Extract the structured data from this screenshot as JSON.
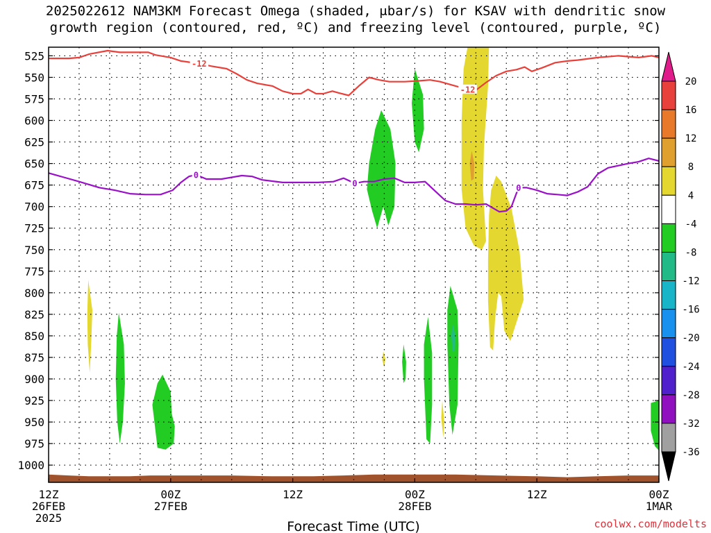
{
  "title": {
    "line1": "2025022612 NAM3KM Forecast Omega (shaded, μbar/s) for KSAV with dendritic snow",
    "line2": "growth region (contoured, red, ºC) and freezing level (contoured, purple, ºC)"
  },
  "credit": "coolwx.com/modelts",
  "chart_data": {
    "type": "time-height cross section",
    "xlabel": "Forecast Time (UTC)",
    "ylabel": "",
    "y_axis": {
      "units": "hPa",
      "inverted": true,
      "ylim": [
        1020,
        515
      ],
      "ticks": [
        525,
        550,
        575,
        600,
        625,
        650,
        675,
        700,
        725,
        750,
        775,
        800,
        825,
        850,
        875,
        900,
        925,
        950,
        975,
        1000
      ]
    },
    "x_axis": {
      "xlim_hours": [
        0,
        60
      ],
      "ticks": [
        {
          "hour": 0,
          "labels": [
            "12Z",
            "26FEB",
            "2025"
          ]
        },
        {
          "hour": 12,
          "labels": [
            "00Z",
            "27FEB"
          ]
        },
        {
          "hour": 24,
          "labels": [
            "12Z"
          ]
        },
        {
          "hour": 36,
          "labels": [
            "00Z",
            "28FEB"
          ]
        },
        {
          "hour": 48,
          "labels": [
            "12Z"
          ]
        },
        {
          "hour": 60,
          "labels": [
            "00Z",
            "1MAR"
          ]
        }
      ]
    },
    "grid": {
      "horizontal": true,
      "vertical": true,
      "style": "dotted"
    },
    "colorbar": {
      "units": "μbar/s",
      "labels": [
        20,
        16,
        12,
        8,
        4,
        -4,
        -8,
        -12,
        -16,
        -20,
        -24,
        -28,
        -32,
        -36
      ],
      "bins": [
        {
          "lo": 16,
          "hi": 20,
          "color": "#e8403a"
        },
        {
          "lo": 12,
          "hi": 16,
          "color": "#e8782a"
        },
        {
          "lo": 8,
          "hi": 12,
          "color": "#e0a030"
        },
        {
          "lo": 4,
          "hi": 8,
          "color": "#e4d830"
        },
        {
          "lo": -4,
          "hi": 4,
          "color": "#ffffff"
        },
        {
          "lo": -8,
          "hi": -4,
          "color": "#22cc22"
        },
        {
          "lo": -12,
          "hi": -8,
          "color": "#22bb88"
        },
        {
          "lo": -16,
          "hi": -12,
          "color": "#18b4c8"
        },
        {
          "lo": -20,
          "hi": -16,
          "color": "#1890ee"
        },
        {
          "lo": -24,
          "hi": -20,
          "color": "#2050e0"
        },
        {
          "lo": -28,
          "hi": -24,
          "color": "#5020cc"
        },
        {
          "lo": -32,
          "hi": -28,
          "color": "#9010c0"
        },
        {
          "lo": -36,
          "hi": -32,
          "color": "#a0a0a0"
        }
      ],
      "top_arrow_color": "#e01c8a",
      "bottom_arrow_color": "#000000"
    },
    "contours": [
      {
        "name": "-12",
        "color": "#e8403a",
        "label": "-12",
        "label_points": [
          [
            14.8,
            534
          ],
          [
            41.2,
            564
          ]
        ],
        "points": [
          [
            0,
            528
          ],
          [
            2,
            528
          ],
          [
            3,
            527
          ],
          [
            4,
            523
          ],
          [
            5.8,
            519
          ],
          [
            7,
            521
          ],
          [
            8.5,
            521
          ],
          [
            9.8,
            521
          ],
          [
            10.5,
            524
          ],
          [
            12,
            527
          ],
          [
            13,
            531
          ],
          [
            14.8,
            534
          ],
          [
            16,
            537
          ],
          [
            17.5,
            540
          ],
          [
            18.5,
            546
          ],
          [
            19.5,
            553
          ],
          [
            20.5,
            557
          ],
          [
            22,
            560
          ],
          [
            23,
            566
          ],
          [
            24,
            569
          ],
          [
            24.8,
            569
          ],
          [
            25.5,
            564
          ],
          [
            26.3,
            569
          ],
          [
            27,
            569
          ],
          [
            27.9,
            566
          ],
          [
            28.5,
            568
          ],
          [
            29.5,
            571
          ],
          [
            30.5,
            560
          ],
          [
            31.5,
            550
          ],
          [
            32.5,
            553
          ],
          [
            33.5,
            555
          ],
          [
            35,
            555
          ],
          [
            36.5,
            554
          ],
          [
            37.5,
            553
          ],
          [
            38.5,
            555
          ],
          [
            40,
            560
          ],
          [
            41.2,
            564
          ],
          [
            42,
            565
          ],
          [
            43,
            556
          ],
          [
            44,
            548
          ],
          [
            45,
            543
          ],
          [
            46,
            541
          ],
          [
            46.8,
            538
          ],
          [
            47.5,
            543
          ],
          [
            48.5,
            539
          ],
          [
            49.8,
            533
          ],
          [
            51,
            531
          ],
          [
            52,
            530
          ],
          [
            54,
            527
          ],
          [
            56,
            525
          ],
          [
            58,
            527
          ],
          [
            59.3,
            525
          ],
          [
            60,
            527
          ]
        ]
      },
      {
        "name": "0",
        "color": "#9a10c8",
        "label": "0",
        "label_points": [
          [
            14.5,
            663
          ],
          [
            30.1,
            673
          ],
          [
            46.2,
            678
          ]
        ],
        "points": [
          [
            0,
            661
          ],
          [
            1.5,
            666
          ],
          [
            3,
            671
          ],
          [
            5,
            678
          ],
          [
            6.5,
            681
          ],
          [
            8,
            685
          ],
          [
            9.5,
            686
          ],
          [
            11,
            686
          ],
          [
            12.2,
            681
          ],
          [
            13,
            672
          ],
          [
            13.8,
            665
          ],
          [
            14.5,
            663
          ],
          [
            15.5,
            668
          ],
          [
            17,
            668
          ],
          [
            19,
            664
          ],
          [
            20,
            665
          ],
          [
            21,
            669
          ],
          [
            23,
            672
          ],
          [
            25,
            672
          ],
          [
            26.5,
            672
          ],
          [
            28,
            671
          ],
          [
            29,
            667
          ],
          [
            30.1,
            673
          ],
          [
            31,
            671
          ],
          [
            32,
            671
          ],
          [
            33,
            668
          ],
          [
            34,
            667
          ],
          [
            35,
            672
          ],
          [
            36,
            672
          ],
          [
            37,
            671
          ],
          [
            38,
            682
          ],
          [
            39,
            693
          ],
          [
            40,
            697
          ],
          [
            41,
            697
          ],
          [
            42,
            698
          ],
          [
            43,
            697
          ],
          [
            44.3,
            706
          ],
          [
            45,
            705
          ],
          [
            45.5,
            700
          ],
          [
            46.2,
            678
          ],
          [
            47,
            678
          ],
          [
            48,
            681
          ],
          [
            49,
            685
          ],
          [
            50,
            686
          ],
          [
            51,
            687
          ],
          [
            52,
            683
          ],
          [
            53,
            677
          ],
          [
            54,
            662
          ],
          [
            55,
            655
          ],
          [
            57,
            650
          ],
          [
            58,
            648
          ],
          [
            59,
            644
          ],
          [
            60,
            647
          ]
        ]
      }
    ],
    "shaded_regions": [
      {
        "name": "yellow-upper-column",
        "bin": "4 to 8",
        "points": [
          [
            41.2,
            514
          ],
          [
            43.3,
            514
          ],
          [
            43.2,
            560
          ],
          [
            42.8,
            630
          ],
          [
            42.7,
            680
          ],
          [
            43,
            740
          ],
          [
            42.6,
            750
          ],
          [
            41.8,
            745
          ],
          [
            41,
            725
          ],
          [
            40.6,
            680
          ],
          [
            40.6,
            600
          ],
          [
            40.8,
            540
          ]
        ]
      },
      {
        "name": "orange-streak",
        "bin": "8 to 12",
        "points": [
          [
            41.6,
            635
          ],
          [
            41.85,
            650
          ],
          [
            41.8,
            668
          ],
          [
            41.55,
            670
          ],
          [
            41.4,
            650
          ]
        ]
      },
      {
        "name": "yellow-lower-lobe",
        "bin": "4 to 8",
        "points": [
          [
            43.5,
            681
          ],
          [
            44,
            664
          ],
          [
            44.5,
            671
          ],
          [
            45.5,
            702
          ],
          [
            46.3,
            752
          ],
          [
            46.7,
            808
          ],
          [
            46,
            834
          ],
          [
            45.4,
            856
          ],
          [
            44.8,
            844
          ],
          [
            44.5,
            804
          ],
          [
            44.2,
            800
          ],
          [
            43.9,
            830
          ],
          [
            43.7,
            867
          ],
          [
            43.4,
            863
          ],
          [
            43.2,
            810
          ],
          [
            43.2,
            760
          ],
          [
            43.3,
            710
          ]
        ]
      },
      {
        "name": "yellow-early-sliver",
        "bin": "4 to 8",
        "points": [
          [
            3.9,
            785
          ],
          [
            4.3,
            820
          ],
          [
            4.2,
            855
          ],
          [
            4.05,
            893
          ],
          [
            3.85,
            860
          ],
          [
            3.8,
            825
          ]
        ]
      },
      {
        "name": "yellow-small-dot",
        "bin": "4 to 8",
        "points": [
          [
            32.9,
            868
          ],
          [
            33.1,
            876
          ],
          [
            33,
            887
          ],
          [
            32.8,
            878
          ]
        ]
      },
      {
        "name": "yellow-thin-sliver",
        "bin": "4 to 8",
        "points": [
          [
            38.7,
            925
          ],
          [
            38.9,
            950
          ],
          [
            38.8,
            968
          ],
          [
            38.6,
            945
          ]
        ]
      },
      {
        "name": "green-early-column",
        "bin": "-8 to -4",
        "points": [
          [
            6.9,
            823
          ],
          [
            7.4,
            860
          ],
          [
            7.5,
            905
          ],
          [
            7.3,
            950
          ],
          [
            7.0,
            975
          ],
          [
            6.75,
            950
          ],
          [
            6.6,
            900
          ],
          [
            6.7,
            850
          ]
        ]
      },
      {
        "name": "green-27feb-blob",
        "bin": "-8 to -4",
        "points": [
          [
            11.2,
            895
          ],
          [
            12,
            915
          ],
          [
            12.1,
            940
          ],
          [
            12.4,
            955
          ],
          [
            12.3,
            975
          ],
          [
            11.5,
            982
          ],
          [
            10.7,
            980
          ],
          [
            10.4,
            950
          ],
          [
            10.2,
            930
          ],
          [
            10.7,
            905
          ]
        ]
      },
      {
        "name": "green-upper-blob",
        "bin": "-8 to -4",
        "points": [
          [
            32.7,
            588
          ],
          [
            33.6,
            610
          ],
          [
            34.1,
            650
          ],
          [
            34,
            700
          ],
          [
            33.4,
            722
          ],
          [
            32.9,
            700
          ],
          [
            32.3,
            725
          ],
          [
            31.8,
            705
          ],
          [
            31.3,
            680
          ],
          [
            31.5,
            650
          ],
          [
            32.1,
            610
          ]
        ]
      },
      {
        "name": "green-narrow-upper",
        "bin": "-8 to -4",
        "points": [
          [
            36,
            540
          ],
          [
            36.8,
            570
          ],
          [
            36.9,
            610
          ],
          [
            36.4,
            637
          ],
          [
            36,
            625
          ],
          [
            35.7,
            580
          ]
        ]
      },
      {
        "name": "green-small-column",
        "bin": "-8 to -4",
        "points": [
          [
            34.9,
            860
          ],
          [
            35.15,
            880
          ],
          [
            35.1,
            900
          ],
          [
            34.9,
            905
          ],
          [
            34.75,
            880
          ]
        ]
      },
      {
        "name": "green-lower-left-column",
        "bin": "-8 to -4",
        "points": [
          [
            37.3,
            828
          ],
          [
            37.7,
            870
          ],
          [
            37.7,
            930
          ],
          [
            37.5,
            975
          ],
          [
            37.15,
            970
          ],
          [
            36.9,
            900
          ],
          [
            36.9,
            860
          ]
        ]
      },
      {
        "name": "green-lower-right-column",
        "bin": "-8 to -4",
        "points": [
          [
            39.5,
            792
          ],
          [
            40.2,
            820
          ],
          [
            40.3,
            860
          ],
          [
            40.2,
            930
          ],
          [
            39.7,
            965
          ],
          [
            39.4,
            930
          ],
          [
            39.2,
            860
          ],
          [
            39.2,
            820
          ]
        ]
      },
      {
        "name": "teal-core",
        "bin": "-12 to -8",
        "points": [
          [
            39.7,
            835
          ],
          [
            39.95,
            848
          ],
          [
            39.9,
            868
          ],
          [
            39.7,
            868
          ],
          [
            39.6,
            850
          ]
        ]
      },
      {
        "name": "green-right-edge",
        "bin": "-8 to -4",
        "points": [
          [
            59.2,
            928
          ],
          [
            60,
            925
          ],
          [
            60,
            983
          ],
          [
            59.6,
            978
          ],
          [
            59.2,
            960
          ]
        ]
      }
    ],
    "terrain": {
      "color": "#a0522d",
      "base_pressure": 1020,
      "points": [
        [
          0,
          1011
        ],
        [
          2,
          1012
        ],
        [
          4,
          1013
        ],
        [
          8,
          1013
        ],
        [
          10,
          1012
        ],
        [
          14,
          1012
        ],
        [
          18,
          1012
        ],
        [
          22,
          1013
        ],
        [
          26,
          1013
        ],
        [
          29,
          1012
        ],
        [
          32,
          1011
        ],
        [
          36,
          1011
        ],
        [
          40,
          1011
        ],
        [
          44,
          1012
        ],
        [
          48,
          1013
        ],
        [
          51,
          1014
        ],
        [
          54,
          1013
        ],
        [
          57,
          1012
        ],
        [
          60,
          1012
        ]
      ]
    }
  }
}
